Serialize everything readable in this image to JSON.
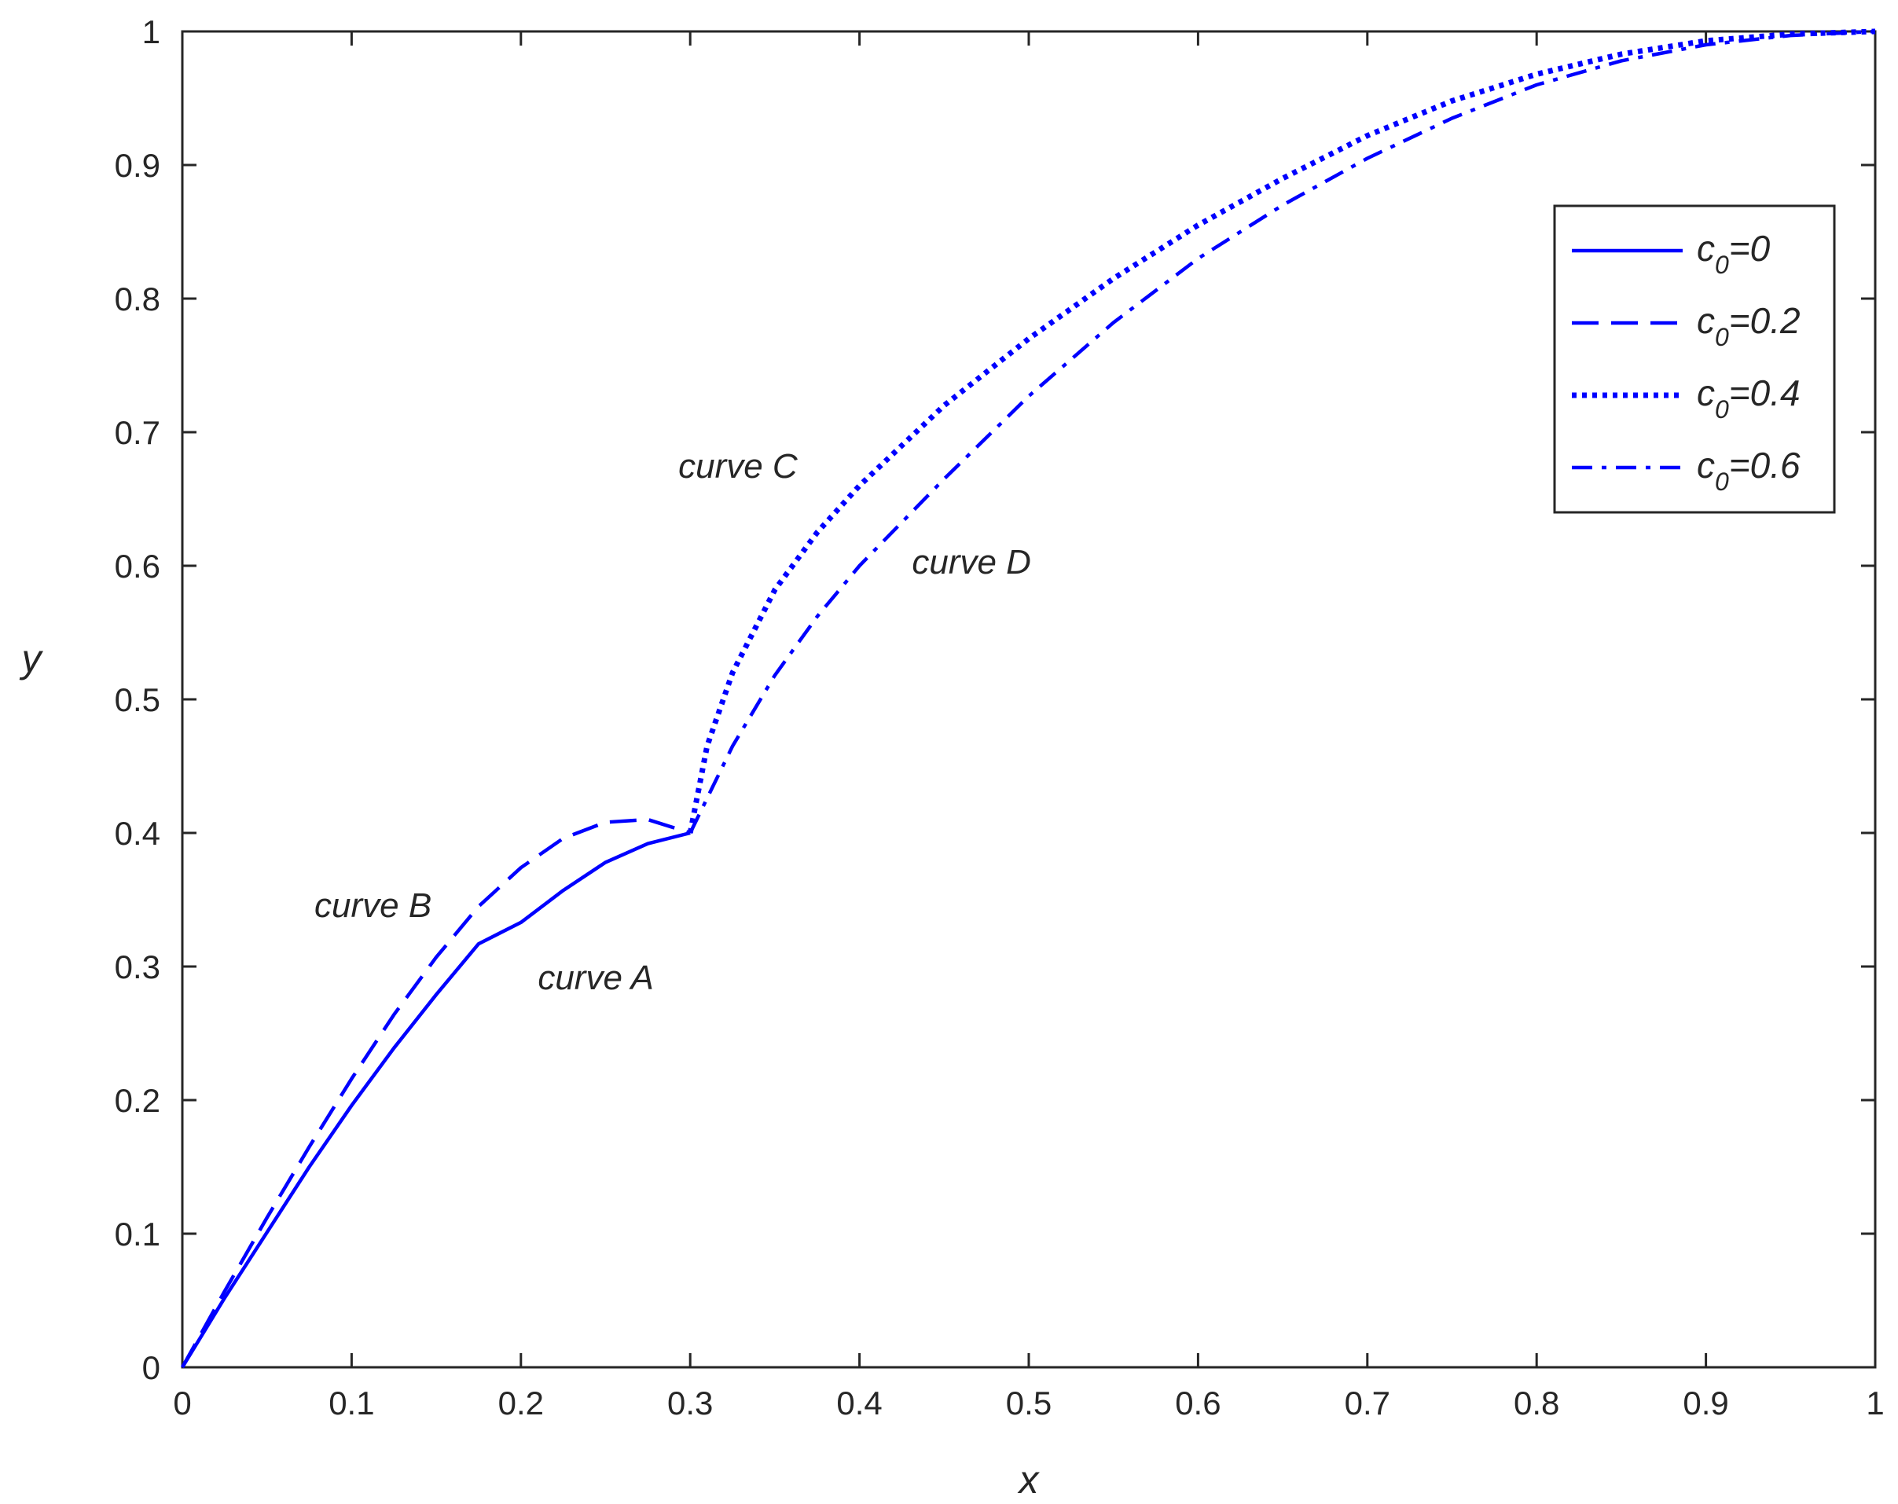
{
  "chart_data": {
    "type": "line",
    "title": "",
    "xlabel": "x",
    "ylabel": "y",
    "xlim": [
      0,
      1
    ],
    "ylim": [
      0,
      1
    ],
    "grid": false,
    "legend_position": "top-right",
    "color": "#0000ff",
    "x_ticks": [
      "0",
      "0.1",
      "0.2",
      "0.3",
      "0.4",
      "0.5",
      "0.6",
      "0.7",
      "0.8",
      "0.9",
      "1"
    ],
    "y_ticks": [
      "0",
      "0.1",
      "0.2",
      "0.3",
      "0.4",
      "0.5",
      "0.6",
      "0.7",
      "0.8",
      "0.9",
      "1"
    ],
    "series": [
      {
        "name": "c0=0",
        "legend_base": "c",
        "legend_sub": "0",
        "legend_value": "=0",
        "style": "solid",
        "x": [
          0,
          0.025,
          0.05,
          0.075,
          0.1,
          0.125,
          0.15,
          0.175,
          0.2,
          0.225,
          0.25,
          0.275,
          0.3
        ],
        "y": [
          0,
          0.052,
          0.101,
          0.15,
          0.196,
          0.239,
          0.279,
          0.317,
          0.333,
          0.357,
          0.378,
          0.392,
          0.4
        ]
      },
      {
        "name": "c0=0.2",
        "legend_base": "c",
        "legend_sub": "0",
        "legend_value": "=0.2",
        "style": "dashed",
        "x": [
          0,
          0.025,
          0.05,
          0.075,
          0.1,
          0.125,
          0.15,
          0.175,
          0.2,
          0.225,
          0.25,
          0.275,
          0.3
        ],
        "y": [
          0,
          0.057,
          0.112,
          0.165,
          0.216,
          0.264,
          0.307,
          0.345,
          0.374,
          0.396,
          0.408,
          0.41,
          0.4
        ]
      },
      {
        "name": "c0=0.4",
        "legend_base": "c",
        "legend_sub": "0",
        "legend_value": "=0.4",
        "style": "dotted",
        "x": [
          0.3,
          0.31,
          0.325,
          0.35,
          0.375,
          0.4,
          0.45,
          0.5,
          0.55,
          0.6,
          0.65,
          0.7,
          0.75,
          0.8,
          0.85,
          0.9,
          0.95,
          1.0
        ],
        "y": [
          0.4,
          0.465,
          0.52,
          0.582,
          0.625,
          0.66,
          0.72,
          0.77,
          0.815,
          0.855,
          0.89,
          0.922,
          0.948,
          0.968,
          0.983,
          0.993,
          0.998,
          1.0
        ]
      },
      {
        "name": "c0=0.6",
        "legend_base": "c",
        "legend_sub": "0",
        "legend_value": "=0.6",
        "style": "dashdot",
        "x": [
          0.3,
          0.325,
          0.35,
          0.375,
          0.4,
          0.45,
          0.5,
          0.55,
          0.6,
          0.65,
          0.7,
          0.75,
          0.8,
          0.85,
          0.9,
          0.95,
          1.0
        ],
        "y": [
          0.4,
          0.465,
          0.518,
          0.562,
          0.6,
          0.665,
          0.727,
          0.782,
          0.83,
          0.87,
          0.905,
          0.935,
          0.96,
          0.978,
          0.99,
          0.997,
          1.0
        ]
      }
    ],
    "annotations": [
      {
        "text": "curve A",
        "x": 0.21,
        "y": 0.283
      },
      {
        "text": "curve B",
        "x": 0.078,
        "y": 0.337
      },
      {
        "text": "curve C",
        "x": 0.293,
        "y": 0.666
      },
      {
        "text": "curve D",
        "x": 0.431,
        "y": 0.594
      }
    ]
  }
}
